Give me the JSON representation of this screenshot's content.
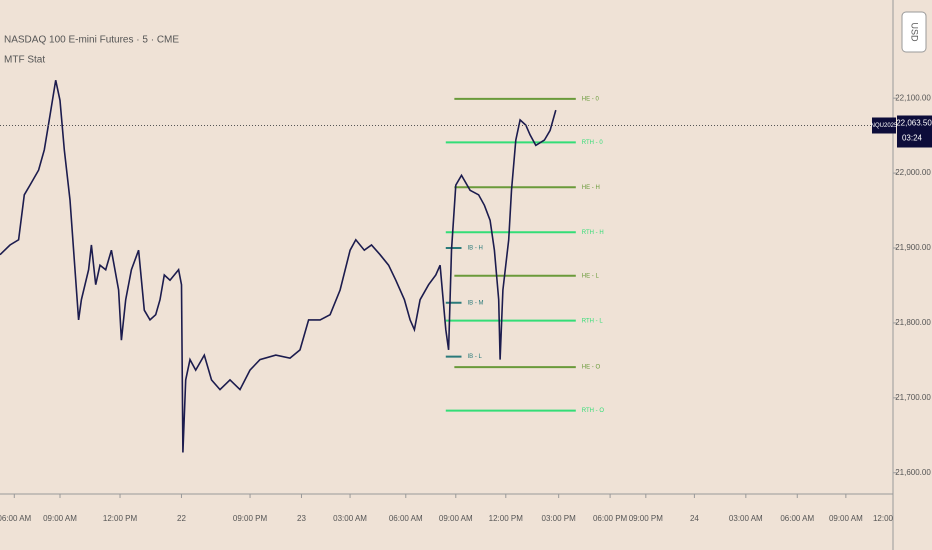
{
  "chart_data": {
    "type": "line",
    "title": "NASDAQ 100 E-mini Futures · 5 · CME",
    "subtitle": "MTF Stat",
    "currency": "USD",
    "xlim": [
      0,
      625
    ],
    "ylim": [
      21573,
      22231
    ],
    "xticks": [
      {
        "value": 10,
        "label": "06:00 AM"
      },
      {
        "value": 42,
        "label": "09:00 AM"
      },
      {
        "value": 84,
        "label": "12:00 PM"
      },
      {
        "value": 127,
        "label": "22"
      },
      {
        "value": 175,
        "label": "09:00 PM"
      },
      {
        "value": 211,
        "label": "23"
      },
      {
        "value": 245,
        "label": "03:00 AM"
      },
      {
        "value": 284,
        "label": "06:00 AM"
      },
      {
        "value": 319,
        "label": "09:00 AM"
      },
      {
        "value": 354,
        "label": "12:00 PM"
      },
      {
        "value": 391,
        "label": "03:00 PM"
      },
      {
        "value": 427,
        "label": "06:00 PM"
      },
      {
        "value": 452,
        "label": "09:00 PM"
      },
      {
        "value": 486,
        "label": "24"
      },
      {
        "value": 522,
        "label": "03:00 AM"
      },
      {
        "value": 558,
        "label": "06:00 AM"
      },
      {
        "value": 592,
        "label": "09:00 AM"
      },
      {
        "value": 625,
        "label": "12:00"
      }
    ],
    "yticks": [
      {
        "value": 22100,
        "label": "22,100.00"
      },
      {
        "value": 22000,
        "label": "22,000.00"
      },
      {
        "value": 21900,
        "label": "21,900.00"
      },
      {
        "value": 21800,
        "label": "21,800.00"
      },
      {
        "value": 21700,
        "label": "21,700.00"
      },
      {
        "value": 21600,
        "label": "21,600.00"
      }
    ],
    "series": [
      {
        "name": "NQU2025",
        "color": "#1c1c4e",
        "x": [
          0,
          7,
          13,
          17,
          21,
          27,
          31,
          35,
          39,
          42,
          45,
          49,
          52,
          55,
          57,
          62,
          64,
          67,
          70,
          74,
          78,
          83,
          85,
          88,
          92,
          97,
          101,
          105,
          109,
          112,
          115,
          119,
          125,
          127,
          128,
          130,
          133,
          137,
          143,
          148,
          154,
          161,
          168,
          175,
          182,
          193,
          203,
          210,
          216,
          224,
          231,
          238,
          245,
          249,
          255,
          260,
          266,
          272,
          277,
          283,
          287,
          290,
          294,
          300,
          305,
          308,
          312,
          314,
          316,
          319,
          323,
          329,
          335,
          339,
          343,
          346,
          349,
          350,
          352,
          356,
          358,
          361,
          364,
          368,
          371,
          375,
          381,
          385,
          389
        ],
        "values": [
          21891,
          21904,
          21911,
          21971,
          21984,
          22004,
          22031,
          22077,
          22124,
          22097,
          22031,
          21964,
          21884,
          21804,
          21831,
          21871,
          21904,
          21851,
          21877,
          21871,
          21897,
          21844,
          21777,
          21831,
          21871,
          21897,
          21817,
          21804,
          21811,
          21831,
          21864,
          21857,
          21871,
          21851,
          21627,
          21724,
          21751,
          21737,
          21757,
          21724,
          21711,
          21724,
          21711,
          21737,
          21751,
          21757,
          21753,
          21764,
          21804,
          21804,
          21811,
          21844,
          21897,
          21911,
          21897,
          21904,
          21891,
          21877,
          21857,
          21831,
          21804,
          21791,
          21831,
          21851,
          21864,
          21877,
          21791,
          21764,
          21897,
          21984,
          21997,
          21977,
          21971,
          21957,
          21937,
          21897,
          21831,
          21751,
          21844,
          21911,
          21977,
          22044,
          22071,
          22064,
          22051,
          22037,
          22044,
          22057,
          22084
        ]
      }
    ],
    "last_price": {
      "value": 22063.5,
      "label": "22,063.50",
      "countdown": "03:24"
    },
    "levels": [
      {
        "label": "HE - 0",
        "value": 22099,
        "x": [
          318,
          403
        ],
        "color": "#6a9a3a"
      },
      {
        "label": "RTH - 0",
        "value": 22041,
        "x": [
          312,
          403
        ],
        "color": "#33dd77"
      },
      {
        "label": "HE - H",
        "value": 21981,
        "x": [
          318,
          403
        ],
        "color": "#6a9a3a"
      },
      {
        "label": "RTH - H",
        "value": 21921,
        "x": [
          312,
          403
        ],
        "color": "#33dd77"
      },
      {
        "label": "HE - L",
        "value": 21863,
        "x": [
          318,
          403
        ],
        "color": "#6a9a3a"
      },
      {
        "label": "RTH - L",
        "value": 21803,
        "x": [
          312,
          403
        ],
        "color": "#33dd77"
      },
      {
        "label": "HE - O",
        "value": 21741,
        "x": [
          318,
          403
        ],
        "color": "#6a9a3a"
      },
      {
        "label": "RTH - O",
        "value": 21683,
        "x": [
          312,
          403
        ],
        "color": "#33dd77"
      }
    ],
    "ib_levels": [
      {
        "label": "IB - H",
        "value": 21900,
        "x": [
          312,
          323
        ],
        "color": "#2a7a7a"
      },
      {
        "label": "IB - M",
        "value": 21827,
        "x": [
          312,
          323
        ],
        "color": "#2a7a7a"
      },
      {
        "label": "IB - L",
        "value": 21755,
        "x": [
          312,
          323
        ],
        "color": "#2a7a7a"
      }
    ]
  }
}
